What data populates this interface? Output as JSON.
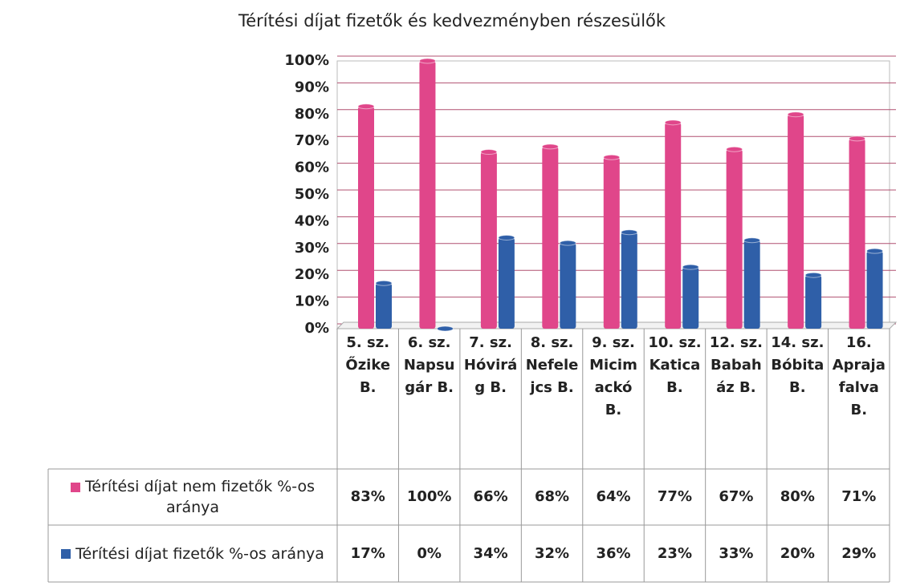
{
  "chart_data": {
    "type": "bar",
    "title": "Térítési díjat fizetők és kedvezményben részesülők",
    "categories": [
      "5. sz. Őzike B.",
      "6. sz. Napsugár B.",
      "7. sz. Hóvirág B.",
      "8. sz. Nefelejcs B.",
      "9. sz. Micimackó B.",
      "10. sz. Katica B.",
      "12. sz. Babaház B.",
      "14. sz. Bóbita B.",
      "16. Aprajafalva B."
    ],
    "series": [
      {
        "name": "Térítési díjat nem fizetők %-os aránya",
        "color": "#e0468a",
        "values": [
          83,
          100,
          66,
          68,
          64,
          77,
          67,
          80,
          71
        ],
        "value_labels": [
          "83%",
          "100%",
          "66%",
          "68%",
          "64%",
          "77%",
          "67%",
          "80%",
          "71%"
        ]
      },
      {
        "name": "Térítési díjat fizetők %-os aránya",
        "color": "#2f5fa8",
        "values": [
          17,
          0,
          34,
          32,
          36,
          23,
          33,
          20,
          29
        ],
        "value_labels": [
          "17%",
          "0%",
          "34%",
          "32%",
          "36%",
          "23%",
          "33%",
          "20%",
          "29%"
        ]
      }
    ],
    "ylim": [
      0,
      100
    ],
    "yticks": [
      {
        "value": 0,
        "label": "0%"
      },
      {
        "value": 10,
        "label": "10%"
      },
      {
        "value": 20,
        "label": "20%"
      },
      {
        "value": 30,
        "label": "30%"
      },
      {
        "value": 40,
        "label": "40%"
      },
      {
        "value": 50,
        "label": "50%"
      },
      {
        "value": 60,
        "label": "60%"
      },
      {
        "value": 70,
        "label": "70%"
      },
      {
        "value": 80,
        "label": "80%"
      },
      {
        "value": 90,
        "label": "90%"
      },
      {
        "value": 100,
        "label": "100%"
      }
    ],
    "grid": true
  }
}
